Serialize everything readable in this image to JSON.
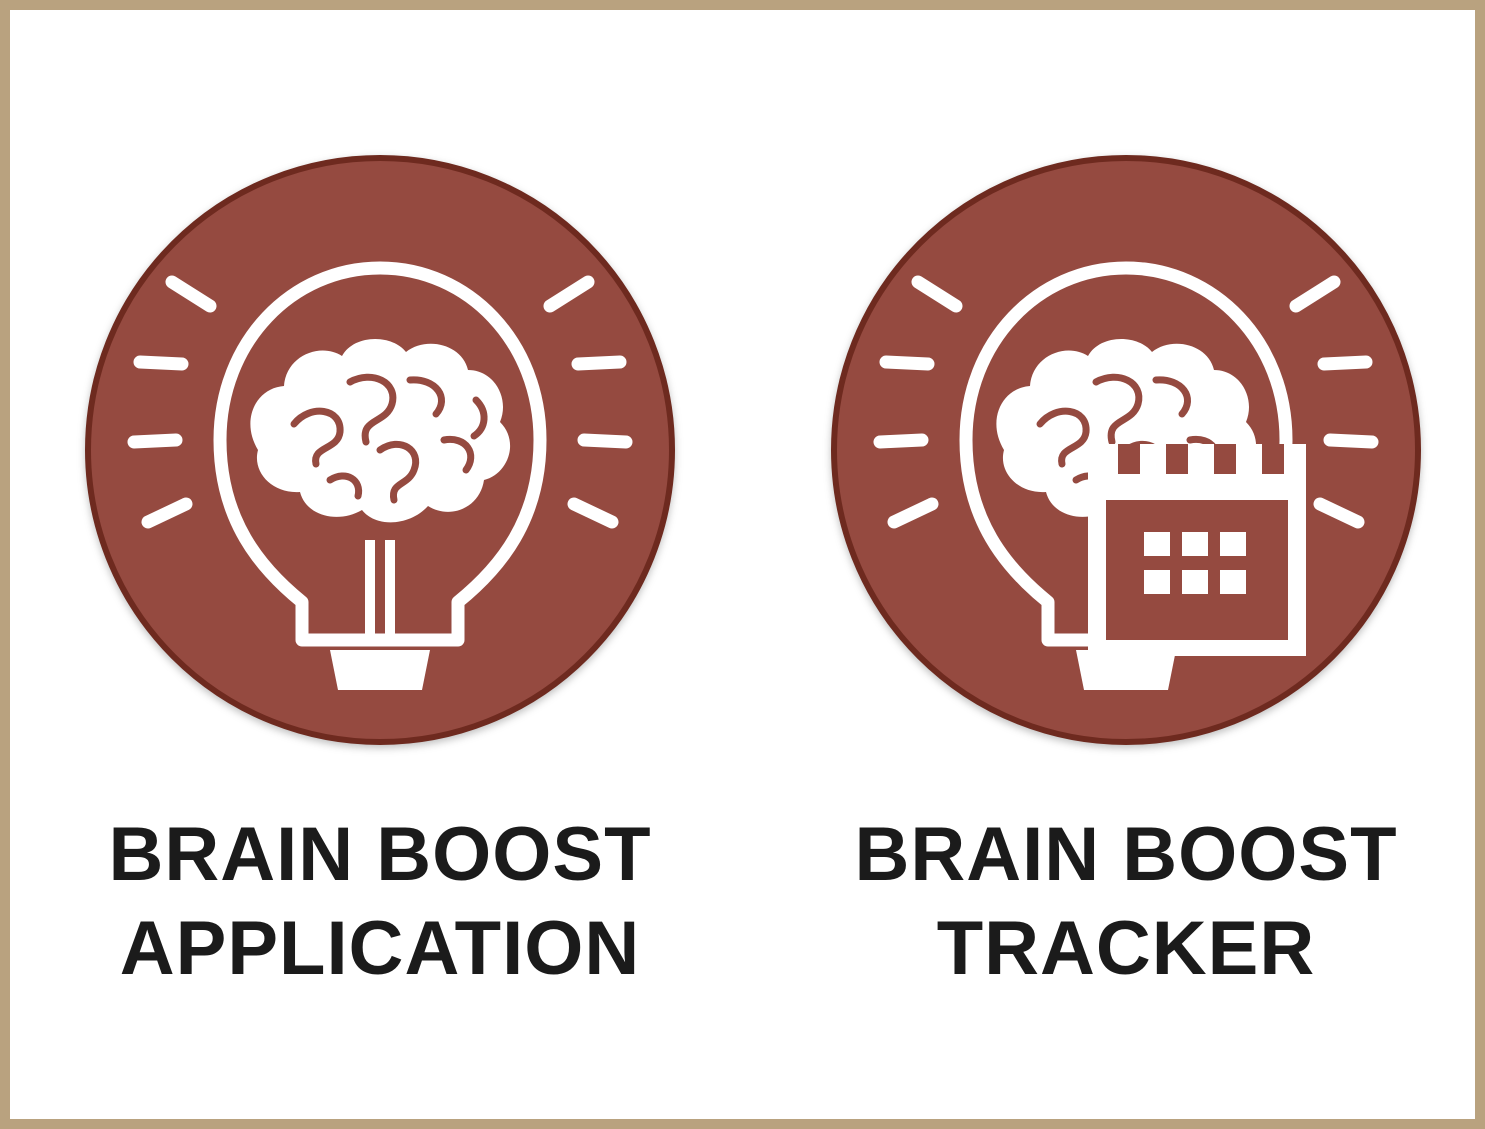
{
  "apps": [
    {
      "id": "application",
      "icon": "brain-lightbulb-icon",
      "label_line1": "BRAIN BOOST",
      "label_line2": "APPLICATION"
    },
    {
      "id": "tracker",
      "icon": "brain-lightbulb-calendar-icon",
      "label_line1": "BRAIN BOOST",
      "label_line2": "TRACKER"
    }
  ],
  "colors": {
    "frame": "#b9a27f",
    "badge_fill": "#954a40",
    "badge_rim": "#6e2a1f",
    "icon_stroke": "#ffffff",
    "label_text": "#1b1b1b"
  }
}
